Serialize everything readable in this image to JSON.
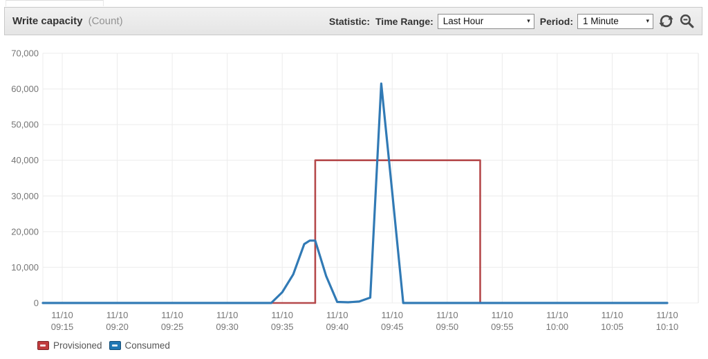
{
  "header": {
    "title": "Write capacity",
    "unit": "(Count)",
    "statistic_label": "Statistic:",
    "time_range_label": "Time Range:",
    "time_range_value": "Last Hour",
    "period_label": "Period:",
    "period_value": "1 Minute",
    "dropdown_arrow": "▾",
    "icons": [
      "refresh-icon",
      "zoom-out-icon"
    ]
  },
  "legend": [
    {
      "label": "Provisioned",
      "color": "#c03b3d"
    },
    {
      "label": "Consumed",
      "color": "#2077b4"
    }
  ],
  "chart_data": {
    "type": "line",
    "title": "Write capacity (Count)",
    "xlabel": "",
    "ylabel": "",
    "ylim": [
      0,
      70000
    ],
    "grid": true,
    "legend_position": "bottom-left",
    "y_ticks": [
      0,
      10000,
      20000,
      30000,
      40000,
      50000,
      60000,
      70000
    ],
    "y_tick_labels": [
      "0",
      "10,000",
      "20,000",
      "30,000",
      "40,000",
      "50,000",
      "60,000",
      "70,000"
    ],
    "x_tick_date": "11/10",
    "x_tick_times": [
      "09:15",
      "09:20",
      "09:25",
      "09:30",
      "09:35",
      "09:40",
      "09:45",
      "09:50",
      "09:55",
      "10:00",
      "10:05",
      "10:10"
    ],
    "x_domain": [
      "09:13",
      "10:13"
    ],
    "series": [
      {
        "name": "Provisioned",
        "color": "#b5494b",
        "width": 2.6,
        "points": [
          [
            "09:13",
            0
          ],
          [
            "09:38",
            0
          ],
          [
            "09:38",
            40000
          ],
          [
            "09:53",
            40000
          ],
          [
            "09:53",
            0
          ],
          [
            "10:10",
            0
          ]
        ]
      },
      {
        "name": "Consumed",
        "color": "#317ab5",
        "width": 3.2,
        "points": [
          [
            "09:13",
            0
          ],
          [
            "09:34",
            0
          ],
          [
            "09:35",
            3000
          ],
          [
            "09:36",
            8000
          ],
          [
            "09:37",
            16500
          ],
          [
            "09:37:30",
            17500
          ],
          [
            "09:38",
            17500
          ],
          [
            "09:39",
            7500
          ],
          [
            "09:40",
            300
          ],
          [
            "09:41",
            200
          ],
          [
            "09:42",
            400
          ],
          [
            "09:43",
            1500
          ],
          [
            "09:44",
            61500
          ],
          [
            "09:45",
            31000
          ],
          [
            "09:46",
            0
          ],
          [
            "10:10",
            0
          ]
        ]
      }
    ]
  }
}
